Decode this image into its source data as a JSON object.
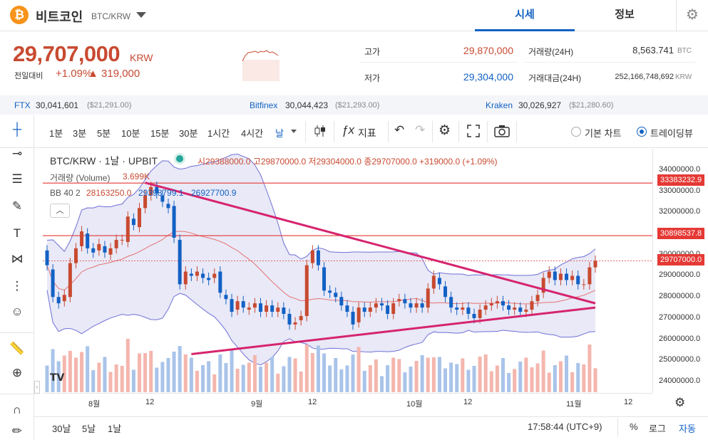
{
  "header": {
    "coin_symbol": "₿",
    "coin_name": "비트코인",
    "pair": "BTC/KRW",
    "tabs": [
      {
        "label": "시세"
      },
      {
        "label": "정보"
      }
    ],
    "settings_icon": "gear-icon"
  },
  "summary": {
    "price": "29,707,000",
    "unit": "KRW",
    "change_label": "전일대비",
    "change_pct": "+1.09%",
    "change_amt": "▲ 319,000",
    "high_label": "고가",
    "high": "29,870,000",
    "low_label": "저가",
    "low": "29,304,000",
    "vol_label": "거래량(24H)",
    "vol": "8,563.741",
    "vol_unit": "BTC",
    "amt_label": "거래대금(24H)",
    "amt": "252,166,748,692",
    "amt_unit": "KRW"
  },
  "exchanges": [
    {
      "name": "FTX",
      "value": "30,041,601",
      "usd": "($21,291.00)"
    },
    {
      "name": "Bitfinex",
      "value": "30,044,423",
      "usd": "($21,293.00)"
    },
    {
      "name": "Kraken",
      "value": "30,026,927",
      "usd": "($21,280.60)"
    }
  ],
  "toolbar": {
    "intervals": [
      "1분",
      "3분",
      "5분",
      "10분",
      "15분",
      "30분",
      "1시간",
      "4시간",
      "날"
    ],
    "indicator_label": "지표",
    "basic_chart": "기본 차트",
    "tradingview": "트레이딩뷰"
  },
  "chart_legend": {
    "symbol": "BTC/KRW · 1날 · UPBIT",
    "ohlc": "시29388000.0 고29870000.0 저29304000.0 종29707000.0 +319000.0 (+1.09%)",
    "volume_label": "거래량 (Volume)",
    "volume_value": "3.699K",
    "bb_label": "BB 40 2",
    "bb_mid": "28163250.0",
    "bb_upper": "29398799.1",
    "bb_lower": "26927700.9"
  },
  "price_tags": {
    "upper_line": "33383232.9",
    "lower_line": "30898537.8",
    "current": "29707000.0"
  },
  "bottom": {
    "ranges": [
      "30날",
      "5날",
      "1날"
    ],
    "time": "17:58:44 (UTC+9)",
    "pct": "%",
    "log": "로그",
    "auto": "자동"
  },
  "chart_data": {
    "type": "candlestick",
    "yticks": [
      "34000000.0",
      "33000000.0",
      "32000000.0",
      "31000000.0",
      "30000000.0",
      "29000000.0",
      "28000000.0",
      "27000000.0",
      "26000000.0",
      "25000000.0",
      "24000000.0"
    ],
    "ylim": [
      23500000,
      34600000
    ],
    "xticks": [
      "8월",
      "12",
      "9월",
      "12",
      "10월",
      "12",
      "11월",
      "12"
    ],
    "colors": {
      "up": "#c84a31",
      "down": "#1261c4",
      "bb_fill": "#e3e4f5",
      "bb_line": "#6f6fd6",
      "mid": "#e57373",
      "trend": "#d6246e",
      "hline": "#e53935"
    },
    "candles": [
      [
        30200000,
        29500000
      ],
      [
        29300000,
        28000000
      ],
      [
        28000000,
        27700000
      ],
      [
        27800000,
        28100000
      ],
      [
        28000000,
        29600000
      ],
      [
        29600000,
        30300000
      ],
      [
        30400000,
        31100000
      ],
      [
        31000000,
        30300000
      ],
      [
        30300000,
        30100000
      ],
      [
        30200000,
        30500000
      ],
      [
        30400000,
        30100000
      ],
      [
        30000000,
        30300000
      ],
      [
        30300000,
        30700000
      ],
      [
        30700000,
        30700000
      ],
      [
        30600000,
        31800000
      ],
      [
        31700000,
        31400000
      ],
      [
        31300000,
        32200000
      ],
      [
        32200000,
        32800000
      ],
      [
        32800000,
        33200000
      ],
      [
        33200000,
        32900000
      ],
      [
        32800000,
        32500000
      ],
      [
        32400000,
        32200000
      ],
      [
        32300000,
        30800000
      ],
      [
        30700000,
        28600000
      ],
      [
        28600000,
        29200000
      ],
      [
        29100000,
        29000000
      ],
      [
        29000000,
        29200000
      ],
      [
        29100000,
        28900000
      ],
      [
        28900000,
        28800000
      ],
      [
        28900000,
        29100000
      ],
      [
        29200000,
        28200000
      ],
      [
        28100000,
        27900000
      ],
      [
        27900000,
        27300000
      ],
      [
        27400000,
        27800000
      ],
      [
        27800000,
        27500000
      ],
      [
        27400000,
        27500000
      ],
      [
        27500000,
        27700000
      ],
      [
        27700000,
        27300000
      ],
      [
        27300000,
        27600000
      ],
      [
        27600000,
        27300000
      ],
      [
        27300000,
        27500000
      ],
      [
        27500000,
        27200000
      ],
      [
        27200000,
        26700000
      ],
      [
        26700000,
        26800000
      ],
      [
        26900000,
        27100000
      ],
      [
        27100000,
        29500000
      ],
      [
        29600000,
        30200000
      ],
      [
        30200000,
        29500000
      ],
      [
        29400000,
        28300000
      ],
      [
        28300000,
        28200000
      ],
      [
        28200000,
        28000000
      ],
      [
        28000000,
        27600000
      ],
      [
        27600000,
        27300000
      ],
      [
        27300000,
        26700000
      ],
      [
        26800000,
        27500000
      ],
      [
        27500000,
        27300000
      ],
      [
        27300000,
        27500000
      ],
      [
        27500000,
        27700000
      ],
      [
        27700000,
        27600000
      ],
      [
        27600000,
        27200000
      ],
      [
        27200000,
        27700000
      ],
      [
        27800000,
        27900000
      ],
      [
        27900000,
        27700000
      ],
      [
        27700000,
        27500000
      ],
      [
        27500000,
        27700000
      ],
      [
        27700000,
        27500000
      ],
      [
        27500000,
        28400000
      ],
      [
        28400000,
        29000000
      ],
      [
        28900000,
        28600000
      ],
      [
        28500000,
        28000000
      ],
      [
        28000000,
        27500000
      ],
      [
        27500000,
        27400000
      ],
      [
        27400000,
        27500000
      ],
      [
        27500000,
        27200000
      ],
      [
        27200000,
        27000000
      ],
      [
        27000000,
        27400000
      ],
      [
        27400000,
        27600000
      ],
      [
        27600000,
        27700000
      ],
      [
        27700000,
        27800000
      ],
      [
        27800000,
        27600000
      ],
      [
        27600000,
        27400000
      ],
      [
        27400000,
        27500000
      ],
      [
        27500000,
        27300000
      ],
      [
        27300000,
        27400000
      ],
      [
        27400000,
        27800000
      ],
      [
        27800000,
        28100000
      ],
      [
        28200000,
        28900000
      ],
      [
        28900000,
        29200000
      ],
      [
        29200000,
        28800000
      ],
      [
        28800000,
        29100000
      ],
      [
        29100000,
        28800000
      ],
      [
        28800000,
        29000000
      ],
      [
        29000000,
        28600000
      ],
      [
        28600000,
        28600000
      ],
      [
        28600000,
        29400000
      ],
      [
        29400000,
        29707000
      ]
    ]
  }
}
